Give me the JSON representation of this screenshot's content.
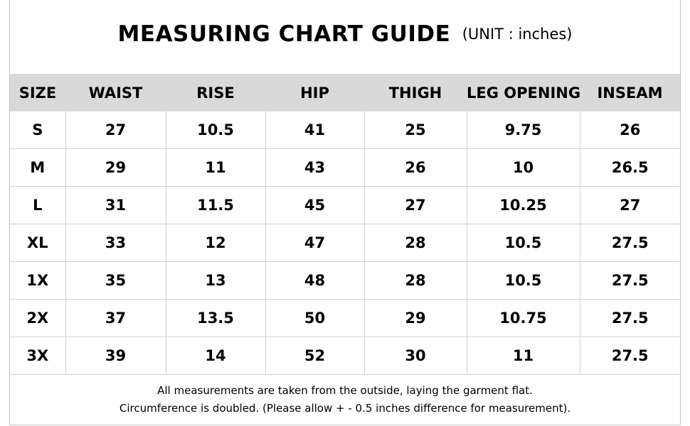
{
  "title": {
    "main": "MEASURING CHART GUIDE",
    "unit": "(UNIT : inches)"
  },
  "table": {
    "headers": [
      "SIZE",
      "WAIST",
      "RISE",
      "HIP",
      "THIGH",
      "LEG OPENING",
      "INSEAM"
    ],
    "rows": [
      [
        "S",
        "27",
        "10.5",
        "41",
        "25",
        "9.75",
        "26"
      ],
      [
        "M",
        "29",
        "11",
        "43",
        "26",
        "10",
        "26.5"
      ],
      [
        "L",
        "31",
        "11.5",
        "45",
        "27",
        "10.25",
        "27"
      ],
      [
        "XL",
        "33",
        "12",
        "47",
        "28",
        "10.5",
        "27.5"
      ],
      [
        "1X",
        "35",
        "13",
        "48",
        "28",
        "10.5",
        "27.5"
      ],
      [
        "2X",
        "37",
        "13.5",
        "50",
        "29",
        "10.75",
        "27.5"
      ],
      [
        "3X",
        "39",
        "14",
        "52",
        "30",
        "11",
        "27.5"
      ]
    ]
  },
  "notes": [
    "All measurements are taken from the outside, laying the garment flat.",
    "Circumference is doubled. (Please allow + - 0.5 inches difference for measurement)."
  ],
  "colors": {
    "header_bg": "#d9d9d9",
    "grid": "#d0d0d0",
    "text": "#000000"
  }
}
